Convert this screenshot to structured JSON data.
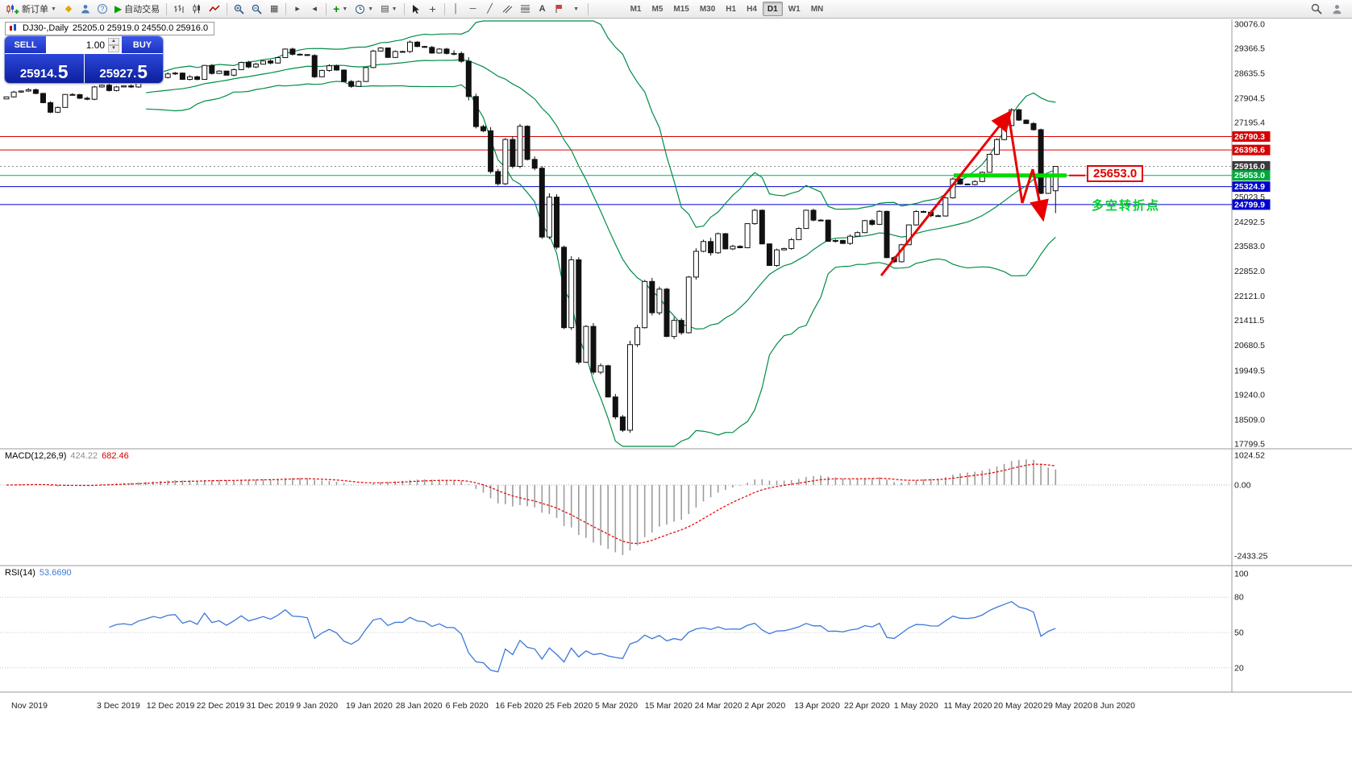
{
  "toolbar": {
    "new_order_label": "新订单",
    "autotrading_label": "自动交易",
    "timeframes": [
      "M1",
      "M5",
      "M15",
      "M30",
      "H1",
      "H4",
      "D1",
      "W1",
      "MN"
    ],
    "active_timeframe": "D1"
  },
  "chart_caption": {
    "symbol": "DJ30-,Daily",
    "ohlc": "25205.0 25919.0 24550.0 25916.0"
  },
  "one_click": {
    "sell_label": "SELL",
    "buy_label": "BUY",
    "volume": "1.00",
    "sell_price": "25914.5",
    "buy_price": "25927.5"
  },
  "annotations": {
    "price_label": "25653.0",
    "turning_point": "多空转折点"
  },
  "price_axis": {
    "plain_labels": [
      30076.0,
      29366.5,
      28635.5,
      27904.5,
      27195.4,
      25023.5,
      24292.5,
      23583.0,
      22852.0,
      22121.0,
      21411.5,
      20680.5,
      19949.5,
      19240.0,
      18509.0,
      17799.5
    ],
    "tagged_levels": [
      {
        "price": 26790.3,
        "label": "26790.3",
        "bg": "#d60000",
        "line_color": "#d60000",
        "line_width": 1
      },
      {
        "price": 26396.6,
        "label": "26396.6",
        "bg": "#d60000",
        "line_color": "#d60000",
        "line_width": 1
      },
      {
        "price": 25916.0,
        "label": "25916.0",
        "bg": "#3a3a3a",
        "line_color": "#8a8a8a",
        "line_width": 1,
        "dotted": true
      },
      {
        "price": 25653.0,
        "label": "25653.0",
        "bg": "#00a83c",
        "line_color": "#00b050",
        "line_width": 1
      },
      {
        "price": 25324.9,
        "label": "25324.9",
        "bg": "#0000d0",
        "line_color": "#0000d0",
        "line_width": 1
      },
      {
        "price": 24799.9,
        "label": "24799.9",
        "bg": "#0000d0",
        "line_color": "#0000d0",
        "line_width": 1
      }
    ]
  },
  "macd": {
    "caption_name": "MACD(12,26,9)",
    "value_main": "424.22",
    "value_signal": "682.46",
    "scale": [
      {
        "label": "1024.52",
        "value": 1024.52
      },
      {
        "label": "0.00",
        "value": 0
      },
      {
        "label": "-2433.25",
        "value": -2433.25
      }
    ]
  },
  "rsi": {
    "caption_name": "RSI(14)",
    "value": "53.6690",
    "scale": [
      {
        "label": "100",
        "value": 100
      },
      {
        "label": "80",
        "value": 80
      },
      {
        "label": "50",
        "value": 50
      },
      {
        "label": "20",
        "value": 20
      }
    ]
  },
  "dates": [
    "Nov 2019",
    "3 Dec 2019",
    "12 Dec 2019",
    "22 Dec 2019",
    "31 Dec 2019",
    "9 Jan 2020",
    "19 Jan 2020",
    "28 Jan 2020",
    "6 Feb 2020",
    "16 Feb 2020",
    "25 Feb 2020",
    "5 Mar 2020",
    "15 Mar 2020",
    "24 Mar 2020",
    "2 Apr 2020",
    "13 Apr 2020",
    "22 Apr 2020",
    "1 May 2020",
    "11 May 2020",
    "20 May 2020",
    "29 May 2020",
    "8 Jun 2020"
  ],
  "chart_data": {
    "type": "candlestick",
    "symbol": "DJ30-",
    "timeframe": "Daily",
    "price_range": {
      "axis_top": 30076.0,
      "axis_bottom": 17799.5
    },
    "last_candle": {
      "open": 25205.0,
      "high": 25919.0,
      "low": 24550.0,
      "close": 25916.0
    },
    "closes": [
      27950,
      28090,
      28120,
      28160,
      28050,
      27780,
      27500,
      27640,
      28020,
      28015,
      27910,
      27880,
      28240,
      28290,
      28135,
      28240,
      28270,
      28239,
      28377,
      28455,
      28552,
      28516,
      28621,
      28645,
      28462,
      28538,
      28462,
      28869,
      28635,
      28704,
      28584,
      28745,
      28957,
      28824,
      28907,
      29000,
      28939,
      29098,
      29348,
      29196,
      29186,
      29160,
      28536,
      28723,
      28859,
      28734,
      28399,
      28256,
      28400,
      28808,
      29290,
      29380,
      29103,
      29277,
      29276,
      29551,
      29423,
      29398,
      29232,
      29348,
      29220,
      29219,
      28992,
      27960,
      27081,
      26958,
      25766,
      25409,
      26703,
      25917,
      27090,
      26121,
      25864,
      23851,
      25018,
      23553,
      21200,
      23185,
      20188,
      21237,
      19898,
      20087,
      19173,
      18591,
      18200,
      20704,
      21200,
      22552,
      21636,
      22327,
      20943,
      21413,
      21052,
      22680,
      23433,
      23719,
      23390,
      23949,
      23504,
      23580,
      23537,
      24242,
      24633,
      23650,
      23018,
      23475,
      23515,
      23775,
      24101,
      24634,
      24345,
      24346,
      23724,
      23749,
      23664,
      23875,
      23980,
      24331,
      24222,
      24602,
      23248,
      23128,
      23625,
      24206,
      24598,
      24576,
      24474,
      24466,
      24996,
      25548,
      25401,
      25383,
      25475,
      25743,
      26270,
      26700,
      27110,
      27572,
      27270,
      27170,
      26990,
      25128,
      25605,
      25916
    ],
    "indicators": [
      {
        "name": "Bollinger Bands",
        "period": 20,
        "deviation": 2,
        "color": "#008c46"
      },
      {
        "name": "MACD",
        "fast": 12,
        "slow": 26,
        "signal": 9,
        "current_main": 424.22,
        "current_signal": 682.46
      },
      {
        "name": "RSI",
        "period": 14,
        "current": 53.669
      }
    ],
    "horizontal_levels": [
      26790.3,
      26396.6,
      25653.0,
      25324.9,
      24799.9
    ],
    "support_highlight_price": 25653.0
  }
}
